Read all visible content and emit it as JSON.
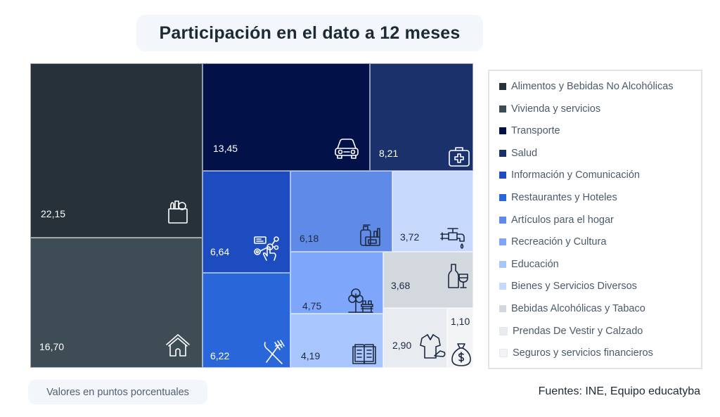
{
  "title": "Participación en el dato a 12 meses",
  "note": "Valores en puntos porcentuales",
  "source": "Fuentes: INE, Equipo educatyba",
  "chart_data": {
    "type": "treemap",
    "title": "Participación en el dato a 12 meses",
    "unit": "puntos porcentuales",
    "legend_position": "right",
    "items": [
      {
        "name": "Alimentos y Bebidas No Alcohólicas",
        "value": 22.15,
        "label": "22,15",
        "color": "#26313a",
        "text_color": "#ffffff",
        "icon": "grocery-bag-icon"
      },
      {
        "name": "Vivienda y servicios",
        "value": 16.7,
        "label": "16,70",
        "color": "#3d4c55",
        "text_color": "#ffffff",
        "icon": "house-icon"
      },
      {
        "name": "Transporte",
        "value": 13.45,
        "label": "13,45",
        "color": "#021248",
        "text_color": "#ffffff",
        "icon": "car-icon"
      },
      {
        "name": "Salud",
        "value": 8.21,
        "label": "8,21",
        "color": "#1a316b",
        "text_color": "#ffffff",
        "icon": "first-aid-kit-icon"
      },
      {
        "name": "Información y Comunicación",
        "value": 6.64,
        "label": "6,64",
        "color": "#1c4cc0",
        "text_color": "#ffffff",
        "icon": "touch-network-icon"
      },
      {
        "name": "Restaurantes y Hoteles",
        "value": 6.22,
        "label": "6,22",
        "color": "#2866da",
        "text_color": "#ffffff",
        "icon": "cutlery-icon"
      },
      {
        "name": "Artículos para el hogar",
        "value": 6.18,
        "label": "6,18",
        "color": "#5f8ae8",
        "text_color": "#1e2a40",
        "icon": "cleaning-products-icon"
      },
      {
        "name": "Recreación y Cultura",
        "value": 4.75,
        "label": "4,75",
        "color": "#7ea7fb",
        "text_color": "#1e2a40",
        "icon": "park-bench-icon"
      },
      {
        "name": "Educación",
        "value": 4.19,
        "label": "4,19",
        "color": "#a8c6fd",
        "text_color": "#1e2a40",
        "icon": "book-icon"
      },
      {
        "name": "Bienes y Servicios Diversos",
        "value": 3.72,
        "label": "3,72",
        "color": "#c6d8fc",
        "text_color": "#1e2a40",
        "icon": "water-tap-icon"
      },
      {
        "name": "Bebidas Alcohólicas y Tabaco",
        "value": 3.68,
        "label": "3,68",
        "color": "#d3d7de",
        "text_color": "#1e2a40",
        "icon": "wine-bottle-icon"
      },
      {
        "name": "Prendas De Vestir y Calzado",
        "value": 2.9,
        "label": "2,90",
        "color": "#e8ebef",
        "text_color": "#1e2a40",
        "icon": "shirt-shoe-icon"
      },
      {
        "name": "Seguros y servicios financieros",
        "value": 1.1,
        "label": "1,10",
        "color": "#f3f4f6",
        "text_color": "#1e2a40",
        "icon": "money-bag-icon"
      }
    ]
  }
}
